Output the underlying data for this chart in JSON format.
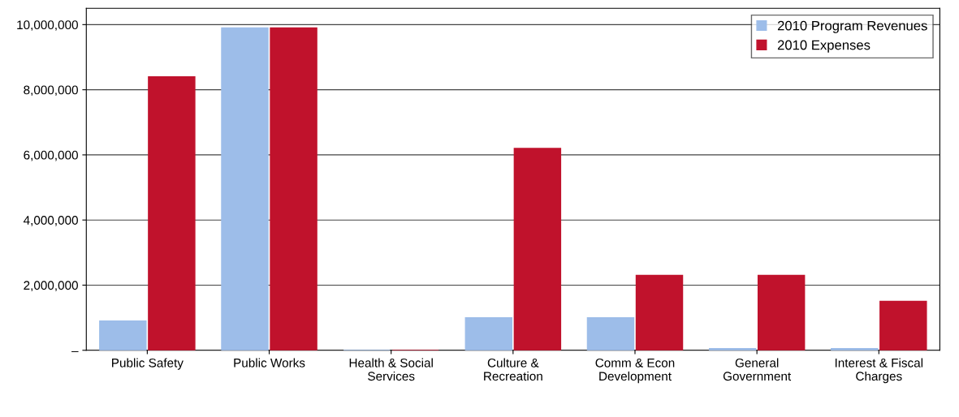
{
  "chart_data": {
    "type": "bar",
    "categories": [
      "Public Safety",
      "Public Works",
      "Health & Social\nServices",
      "Culture &\nRecreation",
      "Comm & Econ\nDevelopment",
      "General\nGovernment",
      "Interest & Fiscal\nCharges"
    ],
    "series": [
      {
        "name": "2010 Program Revenues",
        "color": "#9dbde9",
        "values": [
          900000,
          9900000,
          0,
          1000000,
          1000000,
          50000,
          50000
        ]
      },
      {
        "name": "2010 Expenses",
        "color": "#c0122c",
        "values": [
          8400000,
          9900000,
          0,
          6200000,
          2300000,
          2300000,
          1500000
        ]
      }
    ],
    "ylim": [
      0,
      10500000
    ],
    "yticks": [
      {
        "value": 0,
        "label": "–"
      },
      {
        "value": 2000000,
        "label": "2,000,000"
      },
      {
        "value": 4000000,
        "label": "4,000,000"
      },
      {
        "value": 6000000,
        "label": "6,000,000"
      },
      {
        "value": 8000000,
        "label": "8,000,000"
      },
      {
        "value": 10000000,
        "label": "10,000,000"
      }
    ],
    "grid": "y",
    "legend": "top right"
  }
}
